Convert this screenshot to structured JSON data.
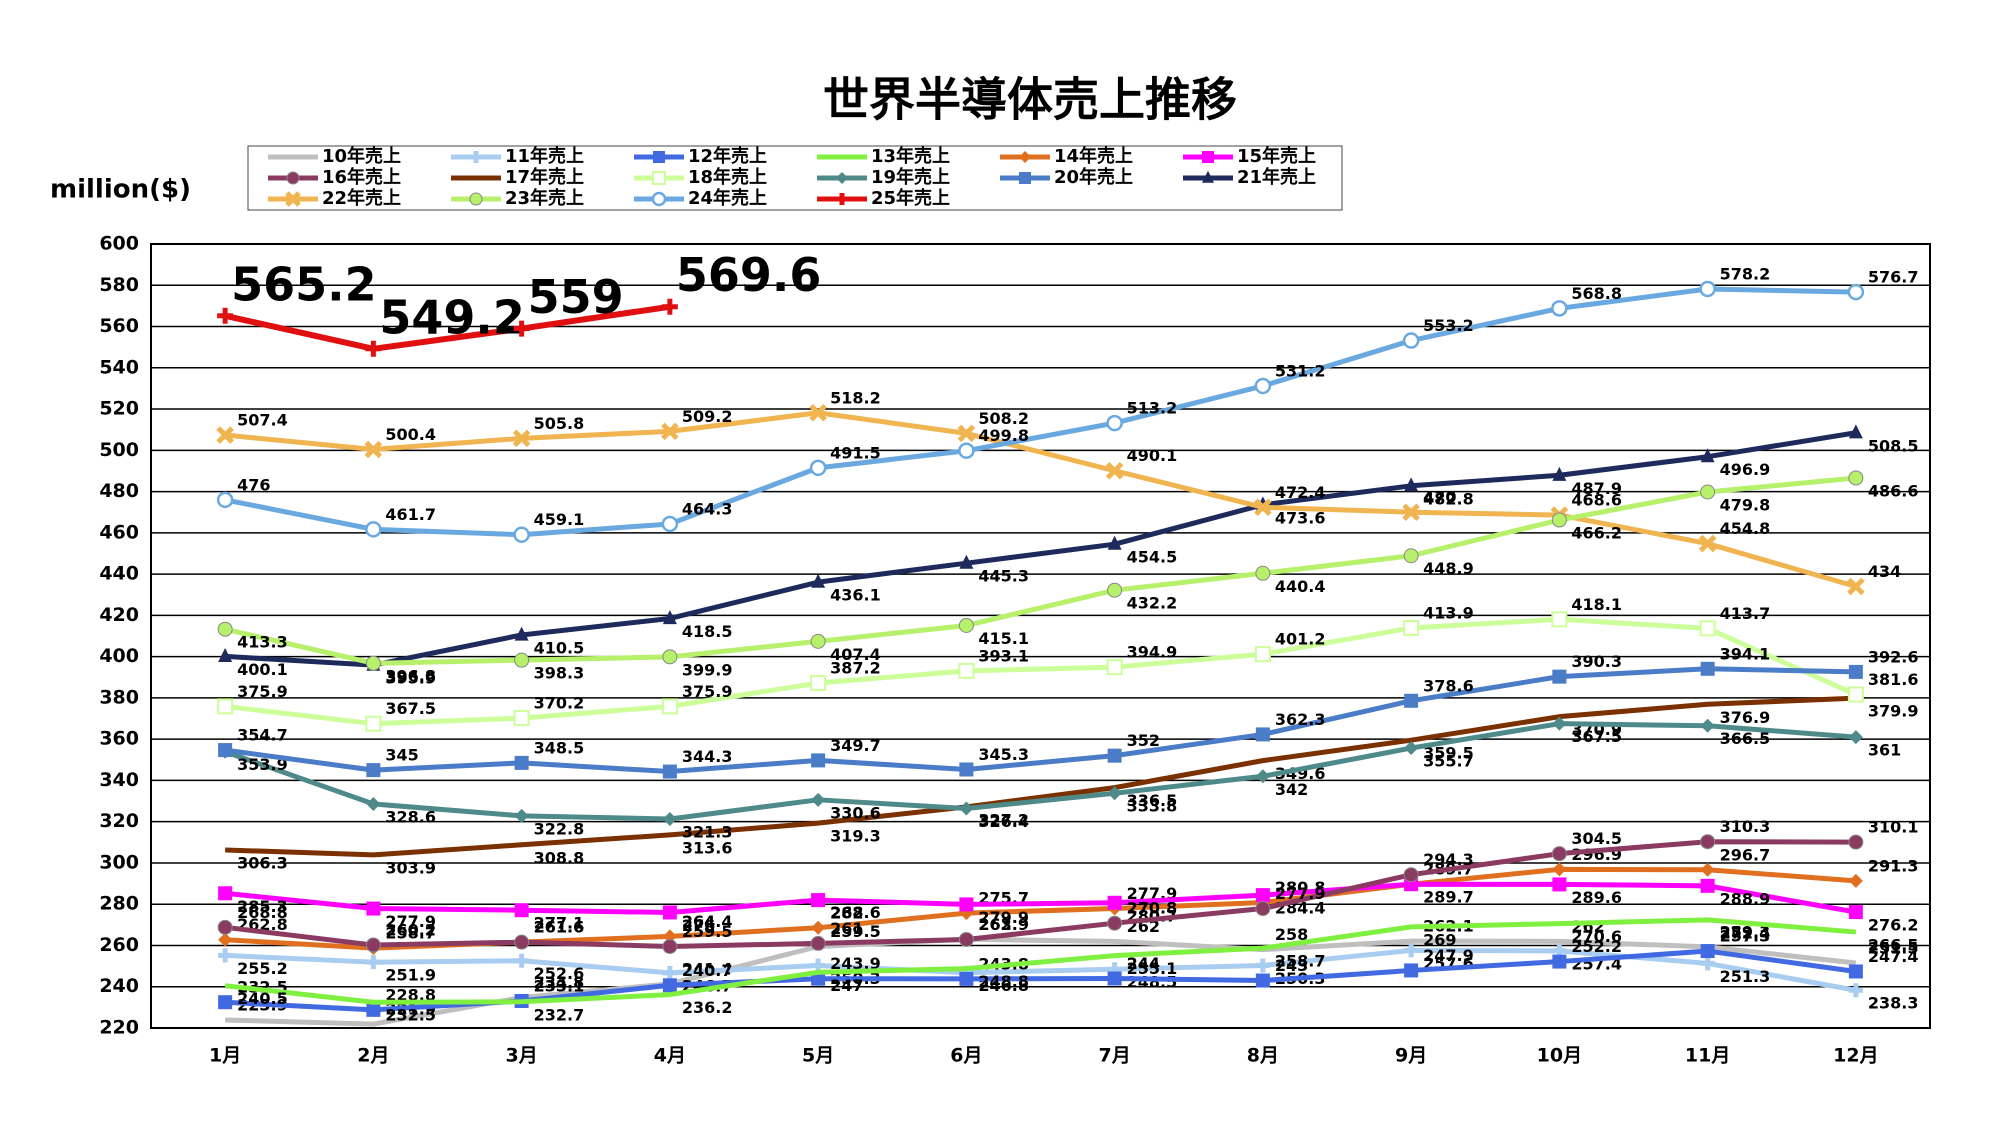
{
  "chart_data": {
    "type": "line",
    "title": "世界半導体売上推移",
    "y_label": "million($)",
    "categories": [
      "1月",
      "2月",
      "3月",
      "4月",
      "5月",
      "6月",
      "7月",
      "8月",
      "9月",
      "10月",
      "11月",
      "12月"
    ],
    "ylim": [
      220,
      600
    ],
    "yticks": [
      220,
      240,
      260,
      280,
      300,
      320,
      340,
      360,
      380,
      400,
      420,
      440,
      460,
      480,
      500,
      520,
      540,
      560,
      580,
      600
    ],
    "grid": true,
    "series": [
      {
        "name": "10年売上",
        "color": "#bfbfbf",
        "marker": "none",
        "values": [
          223.9,
          221.9,
          234.8,
          241.4,
          259.5,
          263,
          262,
          258,
          262.1,
          262,
          259.3,
          251.5
        ]
      },
      {
        "name": "11年売上",
        "color": "#a9cdf0",
        "marker": "plus",
        "values": [
          255.2,
          251.9,
          252.6,
          246.7,
          250.3,
          246.8,
          248.5,
          250.3,
          257.6,
          257.4,
          251.3,
          238.3
        ]
      },
      {
        "name": "12年売上",
        "color": "#4169e1",
        "marker": "square",
        "values": [
          232.5,
          228.8,
          233.1,
          240.7,
          243.9,
          243.8,
          244,
          243,
          247.9,
          252.2,
          257.3,
          247.4
        ]
      },
      {
        "name": "13年売上",
        "color": "#80f040",
        "marker": "none",
        "values": [
          240.5,
          232.5,
          232.7,
          236.2,
          247,
          248.8,
          255.1,
          258.7,
          269,
          270.6,
          272.4,
          266.5
        ]
      },
      {
        "name": "14年売上",
        "color": "#e07020",
        "marker": "diamond",
        "values": [
          262.8,
          258.7,
          261.6,
          264.4,
          268.6,
          275.7,
          277.9,
          280.8,
          289.7,
          296.9,
          296.7,
          291.3
        ]
      },
      {
        "name": "15年売上",
        "color": "#ff00ff",
        "marker": "square",
        "values": [
          285.3,
          277.9,
          277.1,
          276,
          282,
          279.9,
          280.7,
          284.4,
          289.7,
          289.6,
          288.9,
          276.2
        ]
      },
      {
        "name": "16年売上",
        "color": "#8b3a62",
        "marker": "circle",
        "values": [
          268.8,
          260.2,
          261.6,
          259.5,
          261,
          262.9,
          270.8,
          277.9,
          294.3,
          304.5,
          310.3,
          310.1
        ]
      },
      {
        "name": "17年売上",
        "color": "#7b3000",
        "marker": "none",
        "values": [
          306.3,
          303.9,
          308.8,
          313.6,
          319.3,
          327.2,
          336.5,
          349.6,
          359.5,
          370.9,
          376.9,
          379.9
        ]
      },
      {
        "name": "18年売上",
        "color": "#ccff99",
        "marker": "opensquare",
        "values": [
          375.9,
          367.5,
          370.2,
          375.9,
          387.2,
          393.1,
          394.9,
          401.2,
          413.9,
          418.1,
          413.7,
          381.6
        ]
      },
      {
        "name": "19年売上",
        "color": "#4f8a8b",
        "marker": "diamond",
        "values": [
          353.9,
          328.6,
          322.8,
          321.3,
          330.6,
          326.4,
          333.8,
          342,
          355.7,
          367.5,
          366.5,
          361
        ]
      },
      {
        "name": "20年売上",
        "color": "#4a7cc7",
        "marker": "square",
        "values": [
          354.7,
          345,
          348.5,
          344.3,
          349.7,
          345.3,
          352,
          362.3,
          378.6,
          390.3,
          394.1,
          392.6
        ]
      },
      {
        "name": "21年売上",
        "color": "#1f2a5c",
        "marker": "triangle",
        "values": [
          400.1,
          395.9,
          410.5,
          418.5,
          436.1,
          445.3,
          454.5,
          473.6,
          482.8,
          487.9,
          496.9,
          508.5
        ]
      },
      {
        "name": "22年売上",
        "color": "#f0b450",
        "marker": "x",
        "values": [
          507.4,
          500.4,
          505.8,
          509.2,
          518.2,
          508.2,
          490.1,
          472.4,
          470,
          468.6,
          454.8,
          434
        ]
      },
      {
        "name": "23年売上",
        "color": "#b7f06b",
        "marker": "circle",
        "values": [
          413.3,
          396.8,
          398.3,
          399.9,
          407.4,
          415.1,
          432.2,
          440.4,
          448.9,
          466.2,
          479.8,
          486.6
        ]
      },
      {
        "name": "24年売上",
        "color": "#6aa8e0",
        "marker": "opencircle",
        "values": [
          476,
          461.7,
          459.1,
          464.3,
          491.5,
          499.8,
          513.2,
          531.2,
          553.2,
          568.8,
          578.2,
          576.7
        ]
      },
      {
        "name": "25年売上",
        "color": "#e01010",
        "marker": "plus",
        "values": [
          565.2,
          549.2,
          559,
          569.6,
          null,
          null,
          null,
          null,
          null,
          null,
          null,
          null
        ]
      }
    ]
  }
}
